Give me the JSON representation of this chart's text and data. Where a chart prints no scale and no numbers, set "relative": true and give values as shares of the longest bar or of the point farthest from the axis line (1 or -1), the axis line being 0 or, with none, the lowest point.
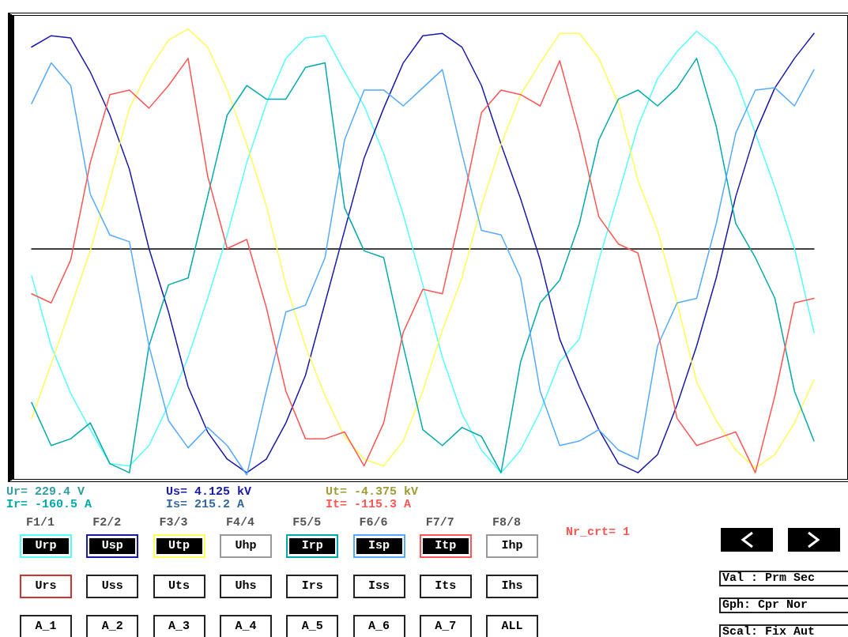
{
  "chart_data": {
    "type": "line",
    "relative": true,
    "marker": "none",
    "categories": [
      null,
      null,
      null,
      null,
      null,
      null,
      null,
      null,
      null,
      null,
      null,
      null,
      null,
      null,
      null,
      null,
      null,
      null,
      null,
      null,
      null,
      null,
      null,
      null,
      null,
      null,
      null,
      null,
      null,
      null,
      null,
      null,
      null,
      null,
      null,
      null,
      null,
      null,
      null,
      null,
      null
    ],
    "series": [
      {
        "color": "#55ffff",
        "values": [
          -0.12,
          -0.43,
          -0.64,
          -0.8,
          -0.95,
          -0.96,
          -0.87,
          -0.69,
          -0.48,
          -0.22,
          0.06,
          0.38,
          0.64,
          0.84,
          0.93,
          0.94,
          0.78,
          0.63,
          0.42,
          0.15,
          -0.16,
          -0.48,
          -0.73,
          -0.89,
          -0.99,
          -0.89,
          -0.72,
          -0.5,
          -0.4,
          -0.05,
          0.24,
          0.54,
          0.75,
          0.87,
          0.96,
          0.89,
          0.75,
          0.51,
          0.27,
          0.0,
          -0.37
        ]
      },
      {
        "color": "#1a1aa8",
        "values": [
          0.89,
          0.94,
          0.93,
          0.78,
          0.59,
          0.35,
          0.0,
          -0.28,
          -0.61,
          -0.81,
          -0.93,
          -0.99,
          -0.93,
          -0.77,
          -0.56,
          -0.24,
          0.08,
          0.4,
          0.62,
          0.82,
          0.94,
          0.95,
          0.89,
          0.72,
          0.46,
          0.22,
          -0.05,
          -0.4,
          -0.61,
          -0.8,
          -0.95,
          -0.99,
          -0.91,
          -0.69,
          -0.43,
          -0.13,
          0.23,
          0.51,
          0.71,
          0.84,
          0.95
        ]
      },
      {
        "color": "#ffff55",
        "values": [
          -0.75,
          -0.51,
          -0.26,
          -0.01,
          0.3,
          0.62,
          0.79,
          0.92,
          0.97,
          0.89,
          0.7,
          0.46,
          0.19,
          -0.16,
          -0.43,
          -0.65,
          -0.83,
          -0.93,
          -0.96,
          -0.85,
          -0.63,
          -0.36,
          -0.13,
          0.19,
          0.46,
          0.68,
          0.82,
          0.95,
          0.95,
          0.84,
          0.64,
          0.3,
          0.08,
          -0.24,
          -0.59,
          -0.76,
          -0.89,
          -0.97,
          -0.91,
          -0.77,
          -0.58
        ]
      },
      {
        "color": "#00aaaa",
        "values": [
          -0.68,
          -0.87,
          -0.84,
          -0.77,
          -0.95,
          -0.99,
          -0.43,
          -0.16,
          -0.13,
          0.23,
          0.59,
          0.72,
          0.66,
          0.66,
          0.8,
          0.82,
          0.18,
          -0.01,
          -0.04,
          -0.43,
          -0.8,
          -0.87,
          -0.79,
          -0.83,
          -0.99,
          -0.5,
          -0.24,
          -0.14,
          0.11,
          0.48,
          0.66,
          0.7,
          0.63,
          0.71,
          0.84,
          0.54,
          0.11,
          -0.04,
          -0.22,
          -0.63,
          -0.85
        ]
      },
      {
        "color": "#55aaff",
        "values": [
          0.64,
          0.82,
          0.72,
          0.24,
          0.06,
          0.03,
          -0.43,
          -0.76,
          -0.88,
          -0.79,
          -0.87,
          -1.0,
          -0.63,
          -0.28,
          -0.25,
          -0.04,
          0.48,
          0.7,
          0.7,
          0.63,
          0.71,
          0.79,
          0.42,
          0.08,
          0.06,
          -0.13,
          -0.63,
          -0.87,
          -0.85,
          -0.8,
          -0.89,
          -0.93,
          -0.43,
          -0.24,
          -0.22,
          0.11,
          0.51,
          0.7,
          0.71,
          0.63,
          0.79
        ]
      },
      {
        "color": "#ff5555",
        "values": [
          -0.2,
          -0.24,
          -0.05,
          0.38,
          0.68,
          0.7,
          0.62,
          0.72,
          0.84,
          0.32,
          0.0,
          0.04,
          -0.26,
          -0.63,
          -0.84,
          -0.84,
          -0.81,
          -0.96,
          -0.77,
          -0.37,
          -0.18,
          -0.2,
          0.18,
          0.6,
          0.7,
          0.68,
          0.63,
          0.83,
          0.51,
          0.14,
          0.02,
          -0.02,
          -0.36,
          -0.75,
          -0.87,
          -0.84,
          -0.81,
          -0.99,
          -0.65,
          -0.24,
          -0.22
        ]
      }
    ],
    "annotations": [
      "Ur= 229.4 V",
      "Us= 4.125 kV",
      "Ut= -4.375 kV",
      "Ir= -160.5 A",
      "Is= 215.2 A",
      "It= -115.3 A",
      "F1/1",
      "F2/2",
      "F3/3",
      "F4/4",
      "F5/5",
      "F6/6",
      "F7/7",
      "F8/8",
      "Urp",
      "Usp",
      "Utp",
      "Uhp",
      "Irp",
      "Isp",
      "Itp",
      "Ihp",
      "Urs",
      "Uss",
      "Uts",
      "Uhs",
      "Irs",
      "Iss",
      "Its",
      "Ihs",
      "A_1",
      "A_2",
      "A_3",
      "A_4",
      "A_5",
      "A_6",
      "A_7",
      "ALL",
      "Nr_crt= 1",
      "Val : Prm Sec",
      "Gph: Cpr Nor",
      "Scal: Fix Aut"
    ]
  }
}
